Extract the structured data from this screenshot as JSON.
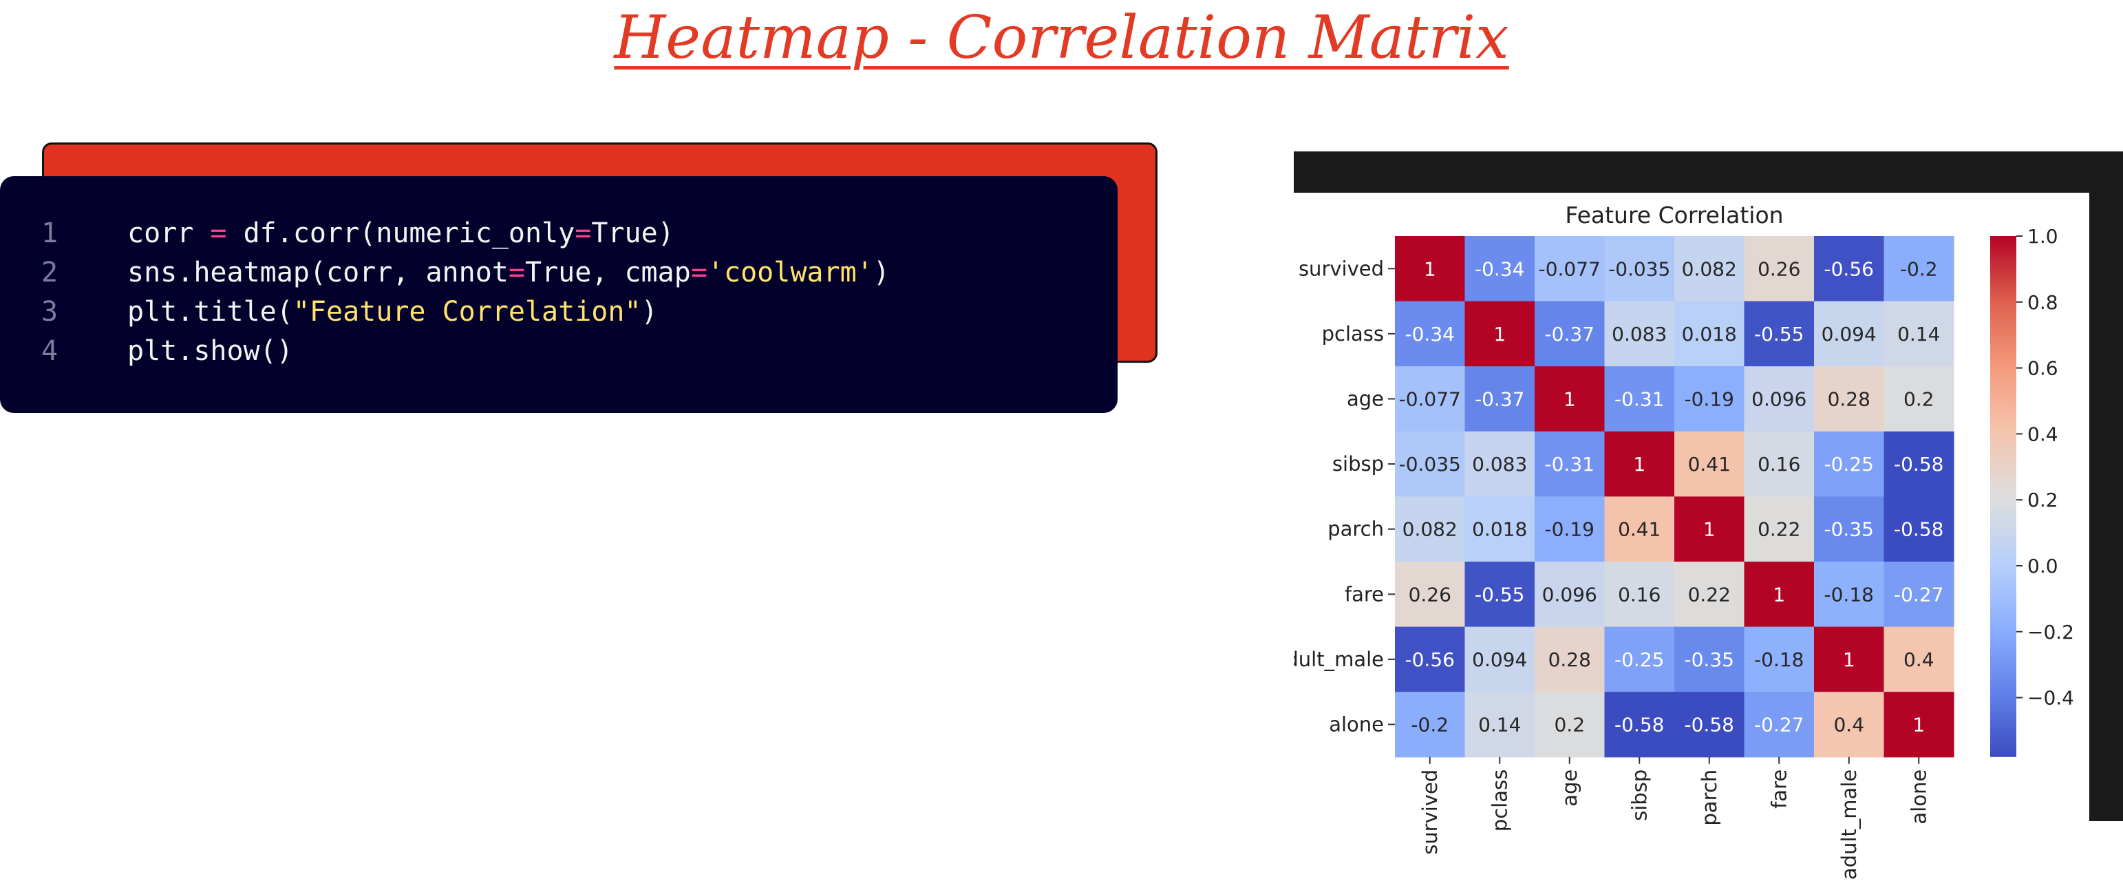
{
  "slide": {
    "title": "Heatmap - Correlation Matrix"
  },
  "code": {
    "lines": [
      {
        "no": "1",
        "parts": [
          {
            "t": "corr "
          },
          {
            "t": "=",
            "c": "op"
          },
          {
            "t": " df.corr(numeric_only"
          },
          {
            "t": "=",
            "c": "op"
          },
          {
            "t": "True)"
          }
        ]
      },
      {
        "no": "2",
        "parts": [
          {
            "t": "sns.heatmap(corr, annot"
          },
          {
            "t": "=",
            "c": "op"
          },
          {
            "t": "True, cmap"
          },
          {
            "t": "=",
            "c": "op"
          },
          {
            "t": "'coolwarm'",
            "c": "str"
          },
          {
            "t": ")"
          }
        ]
      },
      {
        "no": "3",
        "parts": [
          {
            "t": "plt.title("
          },
          {
            "t": "\"Feature Correlation\"",
            "c": "str"
          },
          {
            "t": ")"
          }
        ]
      },
      {
        "no": "4",
        "parts": [
          {
            "t": "plt.show()"
          }
        ]
      }
    ]
  },
  "chart_data": {
    "type": "heatmap",
    "title": "Feature Correlation",
    "colormap": "coolwarm",
    "labels": [
      "survived",
      "pclass",
      "age",
      "sibsp",
      "parch",
      "fare",
      "adult_male",
      "alone"
    ],
    "annotations": [
      [
        "1",
        "-0.34",
        "-0.077",
        "-0.035",
        "0.082",
        "0.26",
        "-0.56",
        "-0.2"
      ],
      [
        "-0.34",
        "1",
        "-0.37",
        "0.083",
        "0.018",
        "-0.55",
        "0.094",
        "0.14"
      ],
      [
        "-0.077",
        "-0.37",
        "1",
        "-0.31",
        "-0.19",
        "0.096",
        "0.28",
        "0.2"
      ],
      [
        "-0.035",
        "0.083",
        "-0.31",
        "1",
        "0.41",
        "0.16",
        "-0.25",
        "-0.58"
      ],
      [
        "0.082",
        "0.018",
        "-0.19",
        "0.41",
        "1",
        "0.22",
        "-0.35",
        "-0.58"
      ],
      [
        "0.26",
        "-0.55",
        "0.096",
        "0.16",
        "0.22",
        "1",
        "-0.18",
        "-0.27"
      ],
      [
        "-0.56",
        "0.094",
        "0.28",
        "-0.25",
        "-0.35",
        "-0.18",
        "1",
        "0.4"
      ],
      [
        "-0.2",
        "0.14",
        "0.2",
        "-0.58",
        "-0.58",
        "-0.27",
        "0.4",
        "1"
      ]
    ],
    "colorbar": {
      "range": [
        -0.58,
        1.0
      ],
      "ticks": [
        -0.4,
        -0.2,
        0.0,
        0.2,
        0.4,
        0.6,
        0.8,
        1.0
      ],
      "tick_labels": [
        "−0.4",
        "−0.2",
        "0.0",
        "0.2",
        "0.4",
        "0.6",
        "0.8",
        "1.0"
      ]
    }
  }
}
